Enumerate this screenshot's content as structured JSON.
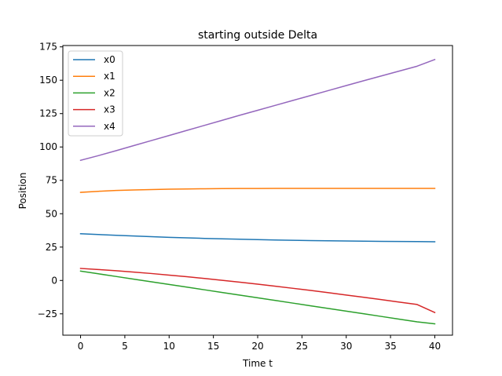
{
  "chart_data": {
    "type": "line",
    "title": "starting outside Delta",
    "xlabel": "Time t",
    "ylabel": "Position",
    "xlim": [
      -2,
      42
    ],
    "ylim": [
      -41,
      176
    ],
    "xticks": [
      0,
      5,
      10,
      15,
      20,
      25,
      30,
      35,
      40
    ],
    "yticks": [
      -25,
      0,
      25,
      50,
      75,
      100,
      125,
      150,
      175
    ],
    "grid": false,
    "legend_position": "upper-left",
    "series": [
      {
        "name": "x0",
        "color": "#1f77b4",
        "x": [
          0,
          2,
          4,
          6,
          8,
          10,
          12,
          14,
          16,
          18,
          20,
          22,
          24,
          26,
          28,
          30,
          32,
          34,
          36,
          38,
          40
        ],
        "y": [
          35.0,
          34.4,
          33.8,
          33.3,
          32.8,
          32.3,
          31.9,
          31.5,
          31.2,
          30.9,
          30.6,
          30.3,
          30.1,
          29.9,
          29.7,
          29.6,
          29.4,
          29.3,
          29.2,
          29.1,
          29.0
        ]
      },
      {
        "name": "x1",
        "color": "#ff7f0e",
        "x": [
          0,
          2,
          4,
          6,
          8,
          10,
          12,
          14,
          16,
          18,
          20,
          22,
          24,
          26,
          28,
          30,
          32,
          34,
          36,
          38,
          40
        ],
        "y": [
          66.0,
          66.8,
          67.4,
          67.8,
          68.1,
          68.4,
          68.5,
          68.7,
          68.8,
          68.9,
          68.9,
          69.0,
          69.0,
          69.0,
          69.0,
          69.0,
          69.0,
          69.0,
          69.0,
          69.0,
          69.0
        ]
      },
      {
        "name": "x2",
        "color": "#2ca02c",
        "x": [
          0,
          2,
          4,
          6,
          8,
          10,
          12,
          14,
          16,
          18,
          20,
          22,
          24,
          26,
          28,
          30,
          32,
          34,
          36,
          38,
          40
        ],
        "y": [
          7.0,
          5.0,
          3.0,
          1.0,
          -1.0,
          -3.0,
          -5.0,
          -7.0,
          -9.0,
          -11.0,
          -13.0,
          -15.0,
          -17.0,
          -19.0,
          -21.0,
          -23.0,
          -25.0,
          -27.0,
          -29.0,
          -31.0,
          -32.5
        ]
      },
      {
        "name": "x3",
        "color": "#d62728",
        "x": [
          0,
          2,
          4,
          6,
          8,
          10,
          12,
          14,
          16,
          18,
          20,
          22,
          24,
          26,
          28,
          30,
          32,
          34,
          36,
          38,
          40
        ],
        "y": [
          9.0,
          8.2,
          7.3,
          6.3,
          5.2,
          4.0,
          2.8,
          1.5,
          0.1,
          -1.3,
          -2.8,
          -4.3,
          -5.9,
          -7.5,
          -9.2,
          -10.9,
          -12.6,
          -14.4,
          -16.2,
          -18.0,
          -24.0
        ]
      },
      {
        "name": "x4",
        "color": "#9467bd",
        "x": [
          0,
          2,
          4,
          6,
          8,
          10,
          12,
          14,
          16,
          18,
          20,
          22,
          24,
          26,
          28,
          30,
          32,
          34,
          36,
          38,
          40
        ],
        "y": [
          90.0,
          93.5,
          97.2,
          101.0,
          104.8,
          108.6,
          112.4,
          116.2,
          120.0,
          123.8,
          127.5,
          131.2,
          134.9,
          138.6,
          142.3,
          146.0,
          149.7,
          153.3,
          156.9,
          160.5,
          165.5
        ]
      }
    ]
  }
}
